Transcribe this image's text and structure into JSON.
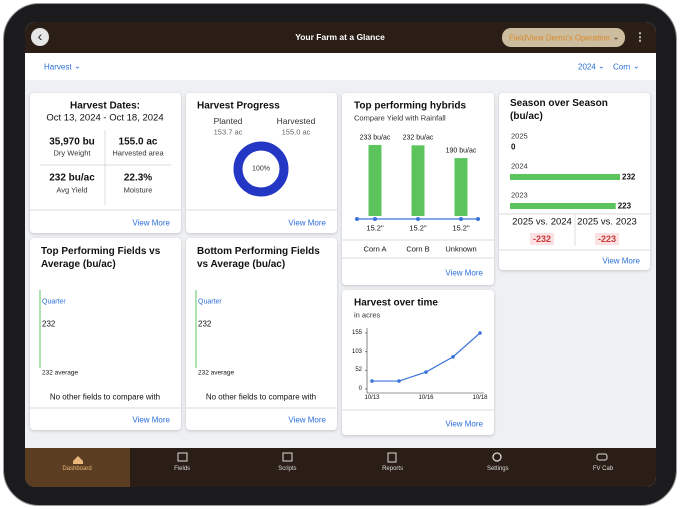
{
  "header": {
    "title": "Your Farm at a Glance",
    "operation": "FieldView Demo's Operation"
  },
  "filters": {
    "view": "Harvest",
    "year": "2024",
    "crop": "Corn"
  },
  "harvest_dates": {
    "title": "Harvest Dates:",
    "range": "Oct 13, 2024 - Oct 18, 2024",
    "stats": [
      {
        "value": "35,970 bu",
        "label": "Dry Weight"
      },
      {
        "value": "155.0 ac",
        "label": "Harvested area"
      },
      {
        "value": "232 bu/ac",
        "label": "Avg Yield"
      },
      {
        "value": "22.3%",
        "label": "Moisture"
      }
    ],
    "link": "View More"
  },
  "harvest_progress": {
    "title": "Harvest Progress",
    "planted_label": "Planted",
    "planted": "153.7 ac",
    "harvested_label": "Harvested",
    "harvested": "155.0 ac",
    "percent": 100,
    "percent_label": "100%",
    "link": "View More"
  },
  "hybrids": {
    "title": "Top performing hybrids",
    "subtitle": "Compare Yield with Rainfall",
    "categories": [
      "Corn A",
      "Corn B",
      "Unknown"
    ],
    "values": [
      233,
      232,
      190
    ],
    "value_labels": [
      "233 bu/ac",
      "232 bu/ac",
      "190 bu/ac"
    ],
    "rainfall": [
      15.2,
      15.2,
      15.2
    ],
    "rainfall_labels": [
      "15.2\"",
      "15.2\"",
      "15.2\""
    ],
    "link": "View More"
  },
  "harvest_time": {
    "title": "Harvest over time",
    "subtitle": "in acres",
    "x": [
      "10/13",
      null,
      "10/16",
      null,
      "10/18"
    ],
    "values": [
      22,
      22,
      47,
      89,
      155
    ],
    "ylim": [
      0,
      155
    ],
    "yticks": [
      0,
      52,
      103,
      155
    ],
    "link": "View More"
  },
  "season": {
    "title": "Season over Season (bu/ac)",
    "series": [
      {
        "name": "2025",
        "value": 0
      },
      {
        "name": "2024",
        "value": 232
      },
      {
        "name": "2023",
        "value": 223
      }
    ],
    "comparisons": [
      {
        "label": "2025 vs. 2024",
        "value": -232
      },
      {
        "label": "2025 vs. 2023",
        "value": -223
      }
    ],
    "link": "View More"
  },
  "top_fields": {
    "title": "Top Performing Fields vs Average (bu/ac)",
    "group": "Quarter",
    "value": 232,
    "average_label": "232 average",
    "empty": "No other fields to compare with",
    "link": "View More"
  },
  "bottom_fields": {
    "title": "Bottom Performing Fields vs Average (bu/ac)",
    "group": "Quarter",
    "value": 232,
    "average_label": "232 average",
    "empty": "No other fields to compare with",
    "link": "View More"
  },
  "nav": [
    "Dashboard",
    "Fields",
    "Scripts",
    "Reports",
    "Settings",
    "FV Cab"
  ]
}
